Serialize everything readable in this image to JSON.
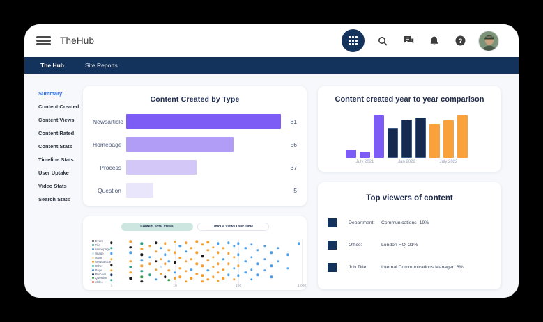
{
  "topbar": {
    "app_title": "TheHub",
    "icons": [
      "apps-grid",
      "search",
      "chat",
      "notifications",
      "help",
      "avatar"
    ]
  },
  "navbar": {
    "items": [
      {
        "label": "The Hub",
        "active": true
      },
      {
        "label": "Site Reports",
        "active": false
      }
    ]
  },
  "sidebar": {
    "items": [
      {
        "label": "Summary",
        "active": true
      },
      {
        "label": "Content Created",
        "active": false
      },
      {
        "label": "Content Views",
        "active": false
      },
      {
        "label": "Content Rated",
        "active": false
      },
      {
        "label": "Content Stats",
        "active": false
      },
      {
        "label": "Timeline Stats",
        "active": false
      },
      {
        "label": "User Uptake",
        "active": false
      },
      {
        "label": "Video Stats",
        "active": false
      },
      {
        "label": "Search Stats",
        "active": false
      }
    ]
  },
  "cards": {
    "content_by_type": {
      "title": "Content Created by Type",
      "chart_data": {
        "type": "bar",
        "orientation": "horizontal",
        "categories": [
          "Newsarticle",
          "Homepage",
          "Process",
          "Question"
        ],
        "values": [
          81,
          56,
          37,
          5
        ],
        "bar_colors": [
          "#7c5cf5",
          "#b29df6",
          "#d3c7f8",
          "#e9e5fb"
        ],
        "xlim": [
          0,
          83
        ],
        "grid": false
      }
    },
    "yoy": {
      "title": "Content created year to year comparison",
      "chart_data": {
        "type": "bar",
        "values": [
          12,
          9,
          61,
          43,
          55,
          58,
          48,
          54,
          61
        ],
        "colors": [
          "#7c5cf5",
          "#7c5cf5",
          "#7c5cf5",
          "#152a4e",
          "#152a4e",
          "#152a4e",
          "#f9a13b",
          "#f9a13b",
          "#f9a13b"
        ],
        "navy_border": "#3a5a8c",
        "ylim": [
          0,
          61
        ],
        "x_tick_labels": [
          {
            "label": "July 2021",
            "bar_index": 1
          },
          {
            "label": "Jan 2022",
            "bar_index": 4
          },
          {
            "label": "July 2022",
            "bar_index": 7
          }
        ]
      }
    },
    "views_scatter": {
      "tabs": [
        {
          "label": "Content Total Views",
          "active": true
        },
        {
          "label": "Unique Views Over Time",
          "active": false
        }
      ],
      "chart_data": {
        "type": "scatter",
        "x_scale": "log",
        "x_range": [
          1,
          1000
        ],
        "x_ticks": [
          "1",
          "10",
          "100",
          "1,000"
        ],
        "legend": [
          {
            "label": "Event",
            "color": "#1a1a1a"
          },
          {
            "label": "File",
            "color": "#2ba08a"
          },
          {
            "label": "Homepage",
            "color": "#4d9fe8"
          },
          {
            "label": "Image",
            "color": "#c4e7f0"
          },
          {
            "label": "Issue",
            "color": "#f0dfa8"
          },
          {
            "label": "Newsarticle",
            "color": "#f5a032"
          },
          {
            "label": "Other",
            "color": "#35b8a5"
          },
          {
            "label": "Page",
            "color": "#3e86d6"
          },
          {
            "label": "Process",
            "color": "#1f3a6e"
          },
          {
            "label": "Question",
            "color": "#3a9e4c"
          },
          {
            "label": "Video",
            "color": "#d94f43"
          }
        ],
        "point_colors": [
          "#1a1a1a",
          "#2ba08a",
          "#4d9fe8",
          "#f5a032",
          "#3a9e4c",
          "#1f3a6e",
          "#d94f43",
          "#c4e7f0",
          "#f0dfa8"
        ],
        "points": [
          [
            1,
            0.08,
            0
          ],
          [
            1,
            0.2,
            1
          ],
          [
            1,
            0.32,
            2
          ],
          [
            1,
            0.45,
            3
          ],
          [
            1,
            0.58,
            0
          ],
          [
            1,
            0.7,
            3
          ],
          [
            1,
            0.8,
            5
          ],
          [
            1,
            0.92,
            1
          ],
          [
            2,
            0.05,
            3
          ],
          [
            2,
            0.18,
            0
          ],
          [
            2,
            0.3,
            2
          ],
          [
            2,
            0.5,
            3
          ],
          [
            2,
            0.62,
            1
          ],
          [
            2,
            0.75,
            3
          ],
          [
            2,
            0.88,
            0
          ],
          [
            3,
            0.1,
            1
          ],
          [
            3,
            0.22,
            3
          ],
          [
            3,
            0.35,
            0
          ],
          [
            3,
            0.48,
            2
          ],
          [
            3,
            0.6,
            3
          ],
          [
            3,
            0.72,
            1
          ],
          [
            3,
            0.85,
            4
          ],
          [
            3,
            0.95,
            0
          ],
          [
            4,
            0.15,
            3
          ],
          [
            4,
            0.4,
            2
          ],
          [
            4,
            0.55,
            3
          ],
          [
            4,
            0.8,
            1
          ],
          [
            5,
            0.08,
            0
          ],
          [
            5,
            0.28,
            3
          ],
          [
            5,
            0.5,
            0
          ],
          [
            5,
            0.68,
            3
          ],
          [
            5,
            0.9,
            2
          ],
          [
            6,
            0.2,
            2
          ],
          [
            6,
            0.45,
            3
          ],
          [
            6,
            0.62,
            7
          ],
          [
            6,
            0.78,
            3
          ],
          [
            7,
            0.1,
            3
          ],
          [
            7,
            0.35,
            2
          ],
          [
            7,
            0.55,
            3
          ],
          [
            7,
            0.85,
            0
          ],
          [
            8,
            0.25,
            3
          ],
          [
            8,
            0.5,
            2
          ],
          [
            8,
            0.7,
            3
          ],
          [
            8,
            0.92,
            4
          ],
          [
            10,
            0.06,
            3
          ],
          [
            10,
            0.3,
            3
          ],
          [
            10,
            0.52,
            0
          ],
          [
            10,
            0.75,
            2
          ],
          [
            10,
            0.88,
            3
          ],
          [
            12,
            0.15,
            2
          ],
          [
            12,
            0.42,
            3
          ],
          [
            12,
            0.65,
            3
          ],
          [
            12,
            0.85,
            3
          ],
          [
            15,
            0.08,
            3
          ],
          [
            15,
            0.28,
            2
          ],
          [
            15,
            0.5,
            3
          ],
          [
            15,
            0.72,
            3
          ],
          [
            15,
            0.95,
            3
          ],
          [
            18,
            0.2,
            3
          ],
          [
            18,
            0.45,
            3
          ],
          [
            18,
            0.68,
            2
          ],
          [
            18,
            0.88,
            3
          ],
          [
            22,
            0.05,
            3
          ],
          [
            22,
            0.3,
            3
          ],
          [
            22,
            0.55,
            3
          ],
          [
            22,
            0.78,
            3
          ],
          [
            27,
            0.12,
            3
          ],
          [
            27,
            0.38,
            0
          ],
          [
            27,
            0.6,
            3
          ],
          [
            27,
            0.82,
            3
          ],
          [
            27,
            0.95,
            3
          ],
          [
            33,
            0.07,
            3
          ],
          [
            33,
            0.25,
            3
          ],
          [
            33,
            0.48,
            3
          ],
          [
            33,
            0.7,
            2
          ],
          [
            33,
            0.9,
            3
          ],
          [
            40,
            0.18,
            3
          ],
          [
            40,
            0.4,
            3
          ],
          [
            40,
            0.62,
            3
          ],
          [
            40,
            0.85,
            3
          ],
          [
            48,
            0.1,
            2
          ],
          [
            48,
            0.3,
            3
          ],
          [
            48,
            0.55,
            3
          ],
          [
            48,
            0.75,
            3
          ],
          [
            48,
            0.93,
            3
          ],
          [
            58,
            0.2,
            3
          ],
          [
            58,
            0.45,
            2
          ],
          [
            58,
            0.68,
            3
          ],
          [
            58,
            0.88,
            3
          ],
          [
            70,
            0.08,
            2
          ],
          [
            70,
            0.32,
            3
          ],
          [
            70,
            0.55,
            3
          ],
          [
            70,
            0.8,
            2
          ],
          [
            85,
            0.15,
            2
          ],
          [
            85,
            0.4,
            3
          ],
          [
            85,
            0.65,
            2
          ],
          [
            85,
            0.9,
            3
          ],
          [
            100,
            0.1,
            2
          ],
          [
            100,
            0.35,
            2
          ],
          [
            100,
            0.6,
            3
          ],
          [
            100,
            0.82,
            2
          ],
          [
            130,
            0.2,
            2
          ],
          [
            130,
            0.5,
            2
          ],
          [
            130,
            0.75,
            2
          ],
          [
            160,
            0.12,
            2
          ],
          [
            160,
            0.4,
            2
          ],
          [
            160,
            0.68,
            2
          ],
          [
            160,
            0.9,
            2
          ],
          [
            200,
            0.25,
            2
          ],
          [
            200,
            0.55,
            2
          ],
          [
            200,
            0.8,
            2
          ],
          [
            260,
            0.15,
            2
          ],
          [
            260,
            0.45,
            2
          ],
          [
            260,
            0.7,
            2
          ],
          [
            330,
            0.3,
            2
          ],
          [
            330,
            0.6,
            2
          ],
          [
            330,
            0.85,
            2
          ],
          [
            420,
            0.2,
            2
          ],
          [
            420,
            0.5,
            2
          ],
          [
            600,
            0.35,
            2
          ],
          [
            600,
            0.65,
            2
          ],
          [
            900,
            0.1,
            2
          ]
        ]
      }
    },
    "top_viewers": {
      "title": "Top viewers of content",
      "rows": [
        {
          "label": "Department:",
          "value": "Communications",
          "percent": "19%"
        },
        {
          "label": "Office:",
          "value": "London HQ",
          "percent": "21%"
        },
        {
          "label": "Job Title:",
          "value": "Internal Communications Manager",
          "percent": "6%"
        }
      ]
    }
  },
  "colors": {
    "navbar_bg": "#14335c",
    "content_bg": "#f6f8fb",
    "accent_purple": "#7c5cf5",
    "accent_navy": "#152a4e",
    "accent_orange": "#f9a13b",
    "active_link": "#2b6cea"
  }
}
